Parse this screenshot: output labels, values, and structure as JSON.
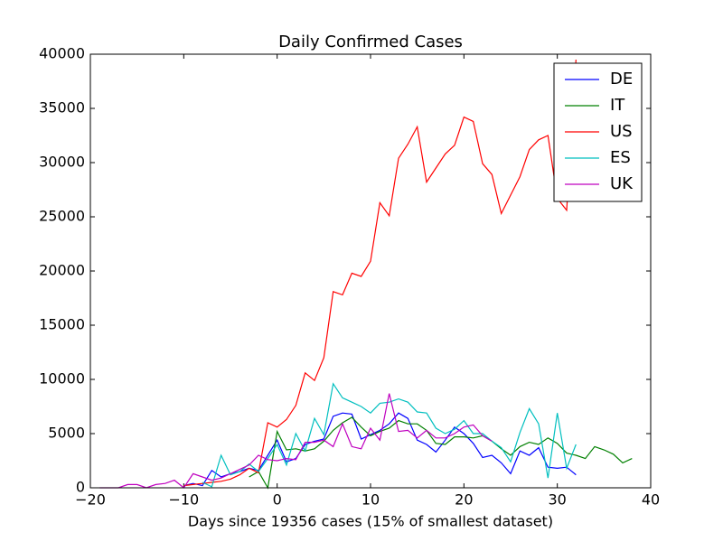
{
  "chart_data": {
    "type": "line",
    "title": "Daily Confirmed Cases",
    "x_label": "Days since 19356 cases (15% of smallest dataset)",
    "xlim": [
      -20,
      40
    ],
    "xticks": [
      {
        "value": -20,
        "label": "−20"
      },
      {
        "value": -10,
        "label": "−10"
      },
      0,
      10,
      20,
      30,
      40
    ],
    "ylim": [
      0,
      40000
    ],
    "yticks": [
      0,
      5000,
      10000,
      15000,
      20000,
      25000,
      30000,
      35000,
      40000
    ],
    "grid": false,
    "legend": "upper right",
    "series": [
      {
        "name": "DE",
        "color": "#0000ff",
        "x": [
          -10,
          -9,
          -8,
          -7,
          -6,
          -5,
          -4,
          -3,
          -2,
          -1,
          0,
          1,
          2,
          3,
          4,
          5,
          6,
          7,
          8,
          9,
          10,
          11,
          12,
          13,
          14,
          15,
          16,
          17,
          18,
          19,
          20,
          21,
          22,
          23,
          24,
          25,
          26,
          27,
          28,
          29,
          30,
          31,
          32
        ],
        "values": [
          200,
          400,
          200,
          1600,
          1000,
          1300,
          1500,
          1800,
          1600,
          3000,
          4400,
          2400,
          2700,
          4000,
          4300,
          4500,
          6600,
          6900,
          6800,
          4500,
          4900,
          5300,
          5900,
          6900,
          6400,
          4400,
          4000,
          3300,
          4400,
          5600,
          5000,
          4100,
          2800,
          3000,
          2300,
          1300,
          3400,
          3000,
          3700,
          1900,
          1800,
          1900,
          1200
        ]
      },
      {
        "name": "IT",
        "color": "#008000",
        "x": [
          -3,
          -2,
          -1,
          0,
          1,
          2,
          3,
          4,
          5,
          6,
          7,
          8,
          9,
          10,
          11,
          12,
          13,
          14,
          15,
          16,
          17,
          18,
          19,
          20,
          21,
          22,
          23,
          24,
          25,
          26,
          27,
          28,
          29,
          30,
          31,
          32,
          33,
          34,
          35,
          36,
          37,
          38
        ],
        "values": [
          1000,
          1500,
          0,
          5200,
          3500,
          3600,
          3400,
          3600,
          4300,
          5300,
          6000,
          6500,
          5600,
          4800,
          5200,
          5500,
          6200,
          5900,
          5900,
          5300,
          4100,
          4000,
          4700,
          4700,
          4600,
          4800,
          4300,
          3600,
          3000,
          3800,
          4200,
          4000,
          4600,
          4100,
          3200,
          3000,
          2700,
          3800,
          3500,
          3100,
          2300,
          2700
        ]
      },
      {
        "name": "US",
        "color": "#ff0000",
        "x": [
          -10,
          -9,
          -8,
          -7,
          -6,
          -5,
          -4,
          -3,
          -2,
          -1,
          0,
          1,
          2,
          3,
          4,
          5,
          6,
          7,
          8,
          9,
          10,
          11,
          12,
          13,
          14,
          15,
          16,
          17,
          18,
          19,
          20,
          21,
          22,
          23,
          24,
          25,
          26,
          27,
          28,
          29,
          30,
          31,
          32
        ],
        "values": [
          200,
          300,
          400,
          500,
          600,
          800,
          1200,
          1800,
          1400,
          6000,
          5600,
          6300,
          7600,
          10600,
          9900,
          12000,
          18100,
          17800,
          19800,
          19500,
          20900,
          26300,
          25100,
          30400,
          31700,
          33300,
          28200,
          29500,
          30800,
          31600,
          34200,
          33800,
          29900,
          28900,
          25300,
          27000,
          28700,
          31200,
          32100,
          32500,
          26700,
          25600,
          39500
        ]
      },
      {
        "name": "ES",
        "color": "#00bfbf",
        "x": [
          -8,
          -7,
          -6,
          -5,
          -4,
          -3,
          -2,
          -1,
          0,
          1,
          2,
          3,
          4,
          5,
          6,
          7,
          8,
          9,
          10,
          11,
          12,
          13,
          14,
          15,
          16,
          17,
          18,
          19,
          20,
          21,
          22,
          23,
          24,
          25,
          26,
          27,
          28,
          29,
          30,
          31,
          32
        ],
        "values": [
          500,
          100,
          3000,
          1200,
          1500,
          2200,
          1500,
          2700,
          4000,
          2100,
          5000,
          3400,
          6400,
          4900,
          9600,
          8300,
          7900,
          7500,
          6900,
          7800,
          7900,
          8200,
          7900,
          7000,
          6900,
          5500,
          5000,
          5400,
          6200,
          5000,
          5000,
          4300,
          3700,
          2400,
          5100,
          7300,
          5900,
          900,
          6900,
          1800,
          4000
        ]
      },
      {
        "name": "UK",
        "color": "#bf00bf",
        "x": [
          -19,
          -18,
          -17,
          -16,
          -15,
          -14,
          -13,
          -12,
          -11,
          -10,
          -9,
          -8,
          -7,
          -6,
          -5,
          -4,
          -3,
          -2,
          -1,
          0,
          1,
          2,
          3,
          4,
          5,
          6,
          7,
          8,
          9,
          10,
          11,
          12,
          13,
          14,
          15,
          16,
          17,
          18,
          19,
          20,
          21,
          22,
          23
        ],
        "values": [
          0,
          0,
          0,
          300,
          300,
          0,
          300,
          400,
          700,
          0,
          1300,
          1000,
          700,
          900,
          1300,
          1700,
          2100,
          3000,
          2600,
          2500,
          2700,
          2600,
          4200,
          4200,
          4400,
          3800,
          5900,
          3800,
          3600,
          5500,
          4400,
          8700,
          5200,
          5300,
          4600,
          5300,
          4600,
          4600,
          5000,
          5600,
          5800,
          4800,
          4300
        ]
      }
    ]
  }
}
